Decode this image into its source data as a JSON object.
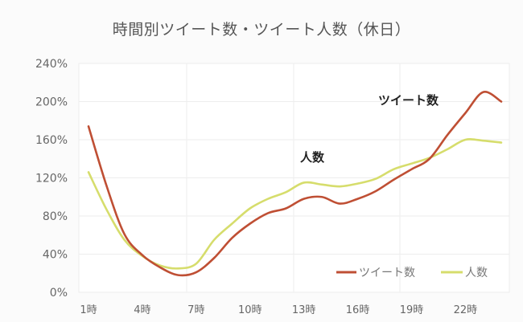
{
  "chart_data": {
    "type": "line",
    "title": "時間別ツイート数・ツイート人数（休日）",
    "xlabel": "",
    "ylabel": "",
    "ylim": [
      0,
      240
    ],
    "yticks": [
      "0%",
      "40%",
      "80%",
      "120%",
      "160%",
      "200%",
      "240%"
    ],
    "x": [
      "1時",
      "2時",
      "3時",
      "4時",
      "5時",
      "6時",
      "7時",
      "8時",
      "9時",
      "10時",
      "11時",
      "12時",
      "13時",
      "14時",
      "15時",
      "16時",
      "17時",
      "18時",
      "19時",
      "20時",
      "21時",
      "22時",
      "23時",
      "24時"
    ],
    "xtick_labels": [
      "1時",
      "4時",
      "7時",
      "10時",
      "13時",
      "16時",
      "19時",
      "22時"
    ],
    "series": [
      {
        "name": "ツイート数",
        "color": "#bf4f34",
        "values": [
          174,
          112,
          61,
          39,
          26,
          18,
          21,
          36,
          57,
          72,
          83,
          88,
          98,
          100,
          93,
          98,
          106,
          118,
          129,
          140,
          165,
          188,
          210,
          200
        ]
      },
      {
        "name": "人数",
        "color": "#d6dd6c",
        "values": [
          126,
          87,
          55,
          38,
          28,
          25,
          30,
          55,
          72,
          88,
          98,
          105,
          115,
          113,
          111,
          114,
          119,
          129,
          135,
          141,
          150,
          160,
          159,
          157
        ]
      }
    ],
    "annotations": [
      {
        "text": "ツイート数",
        "series": "ツイート数"
      },
      {
        "text": "人数",
        "series": "人数"
      }
    ],
    "grid": true,
    "legend_position": "bottom-right",
    "units": "%"
  },
  "legend": {
    "items": [
      {
        "label": "ツイート数",
        "color": "#bf4f34"
      },
      {
        "label": "人数",
        "color": "#d6dd6c"
      }
    ]
  }
}
